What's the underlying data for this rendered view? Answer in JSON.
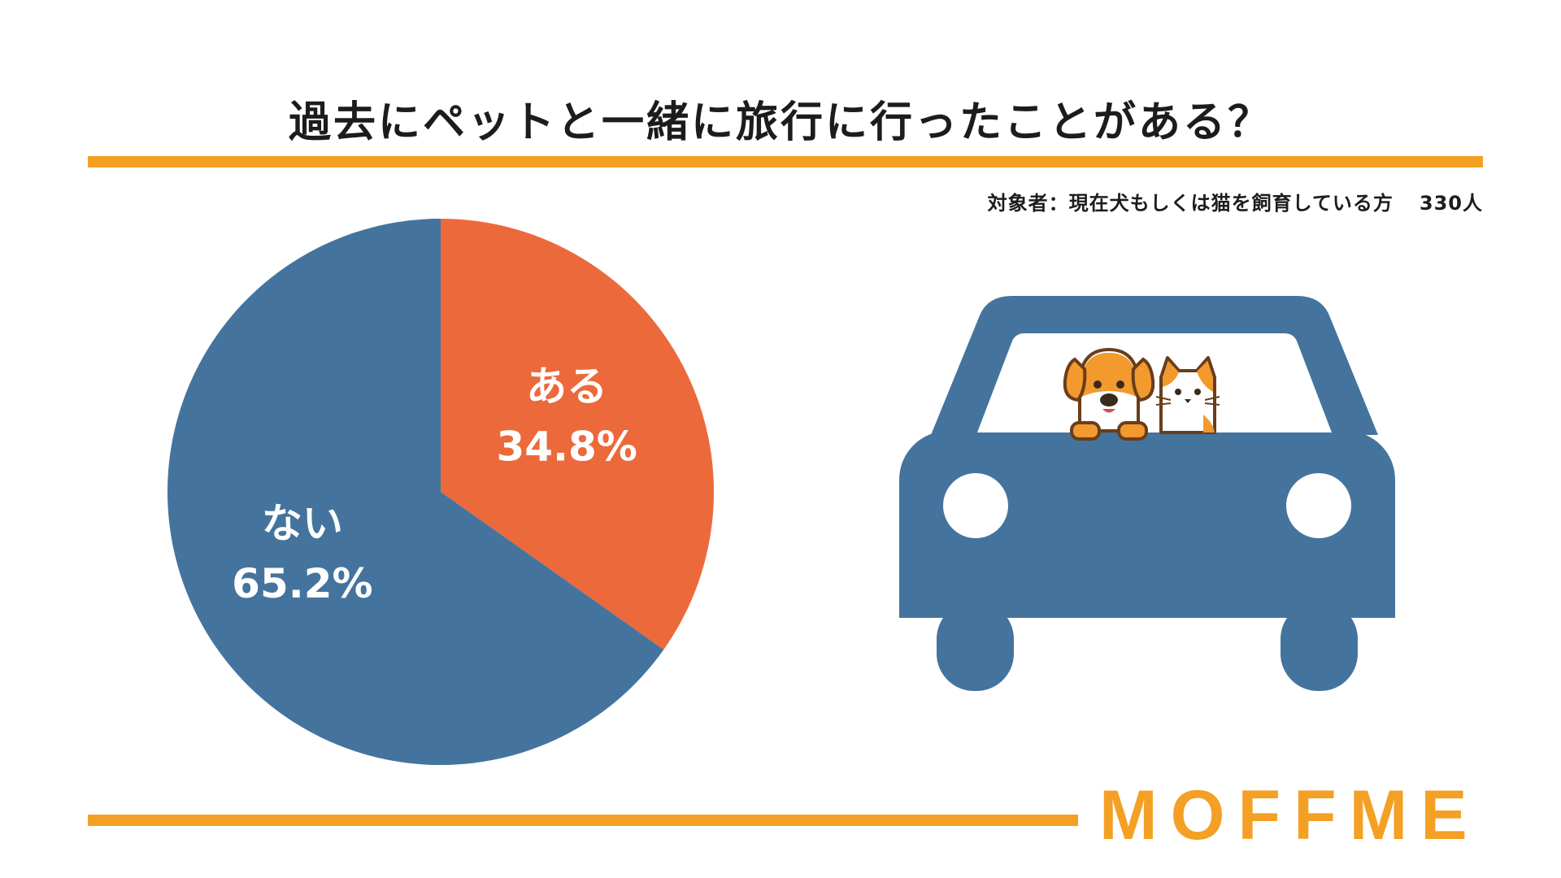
{
  "header": {
    "title": "過去にペットと一緒に旅行に行ったことがある？",
    "respondent_label": "対象者：現在犬もしくは猫を飼育している方",
    "respondent_count": "330人"
  },
  "chart_data": {
    "type": "pie",
    "title": "過去にペットと一緒に旅行に行ったことがある？",
    "categories": [
      "ある",
      "ない"
    ],
    "values": [
      34.8,
      65.2
    ],
    "value_labels": [
      "34.8%",
      "65.2%"
    ],
    "colors": [
      "#ec693c",
      "#44749e"
    ],
    "start": "12 o'clock, clockwise"
  },
  "illustration": {
    "name": "car-with-dog-and-cat",
    "car_color": "#44749e"
  },
  "brand": {
    "logo_text": "MOFFME",
    "accent_color": "#f4a025"
  }
}
